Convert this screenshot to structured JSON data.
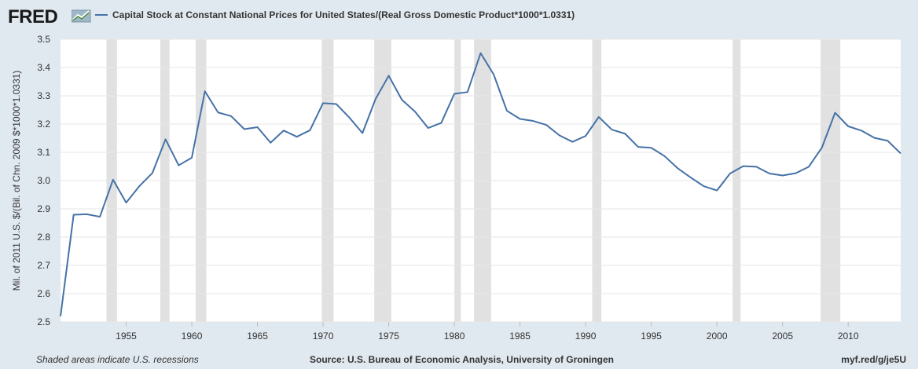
{
  "header": {
    "logo": "FRED",
    "legend_label": "Capital Stock at Constant National Prices for United States/(Real Gross Domestic Product*1000*1.0331)"
  },
  "footer": {
    "left": "Shaded areas indicate U.S. recessions",
    "center": "Source: U.S. Bureau of Economic Analysis, University of Groningen",
    "right": "myf.red/g/je5U"
  },
  "colors": {
    "line": "#4572a7",
    "recession": "#e1e1e1",
    "grid": "#e6e6e6",
    "background": "#e1e9f0",
    "plot": "#ffffff"
  },
  "chart_data": {
    "type": "line",
    "title": "Capital Stock at Constant National Prices for United States/(Real Gross Domestic Product*1000*1.0331)",
    "ylabel": "Mil. of 2011 U.S. $/(Bil. of Chn. 2009 $*1000*1.0331)",
    "xlabel": "",
    "xlim": [
      1950,
      2014
    ],
    "ylim": [
      2.5,
      3.5
    ],
    "yticks": [
      "2.5",
      "2.6",
      "2.7",
      "2.8",
      "2.9",
      "3.0",
      "3.1",
      "3.2",
      "3.3",
      "3.4",
      "3.5"
    ],
    "xticks": [
      "1955",
      "1960",
      "1965",
      "1970",
      "1975",
      "1980",
      "1985",
      "1990",
      "1995",
      "2000",
      "2005",
      "2010"
    ],
    "grid": true,
    "legend": "top-left",
    "recessions": [
      [
        1953.5,
        1954.3
      ],
      [
        1957.6,
        1958.3
      ],
      [
        1960.3,
        1961.1
      ],
      [
        1969.9,
        1970.8
      ],
      [
        1973.9,
        1975.2
      ],
      [
        1980.0,
        1980.5
      ],
      [
        1981.5,
        1982.8
      ],
      [
        1990.5,
        1991.2
      ],
      [
        2001.2,
        2001.8
      ],
      [
        2007.9,
        2009.4
      ]
    ],
    "series": [
      {
        "x": [
          1950,
          1951,
          1952,
          1953,
          1954,
          1955,
          1956,
          1957,
          1958,
          1959,
          1960,
          1961,
          1962,
          1963,
          1964,
          1965,
          1966,
          1967,
          1968,
          1969,
          1970,
          1971,
          1972,
          1973,
          1974,
          1975,
          1976,
          1977,
          1978,
          1979,
          1980,
          1981,
          1982,
          1983,
          1984,
          1985,
          1986,
          1987,
          1988,
          1989,
          1990,
          1991,
          1992,
          1993,
          1994,
          1995,
          1996,
          1997,
          1998,
          1999,
          2000,
          2001,
          2002,
          2003,
          2004,
          2005,
          2006,
          2007,
          2008,
          2009,
          2010,
          2011,
          2012,
          2013,
          2014
        ],
        "values": [
          2.52,
          2.879,
          2.881,
          2.872,
          3.003,
          2.922,
          2.98,
          3.027,
          3.146,
          3.054,
          3.081,
          3.316,
          3.241,
          3.228,
          3.182,
          3.189,
          3.134,
          3.177,
          3.155,
          3.178,
          3.274,
          3.271,
          3.223,
          3.168,
          3.289,
          3.371,
          3.286,
          3.244,
          3.186,
          3.204,
          3.307,
          3.313,
          3.451,
          3.375,
          3.247,
          3.218,
          3.211,
          3.197,
          3.16,
          3.137,
          3.158,
          3.225,
          3.18,
          3.166,
          3.119,
          3.116,
          3.087,
          3.044,
          3.011,
          2.98,
          2.965,
          3.025,
          3.051,
          3.049,
          3.025,
          3.018,
          3.026,
          3.049,
          3.117,
          3.24,
          3.192,
          3.177,
          3.151,
          3.141,
          3.096
        ]
      }
    ]
  }
}
